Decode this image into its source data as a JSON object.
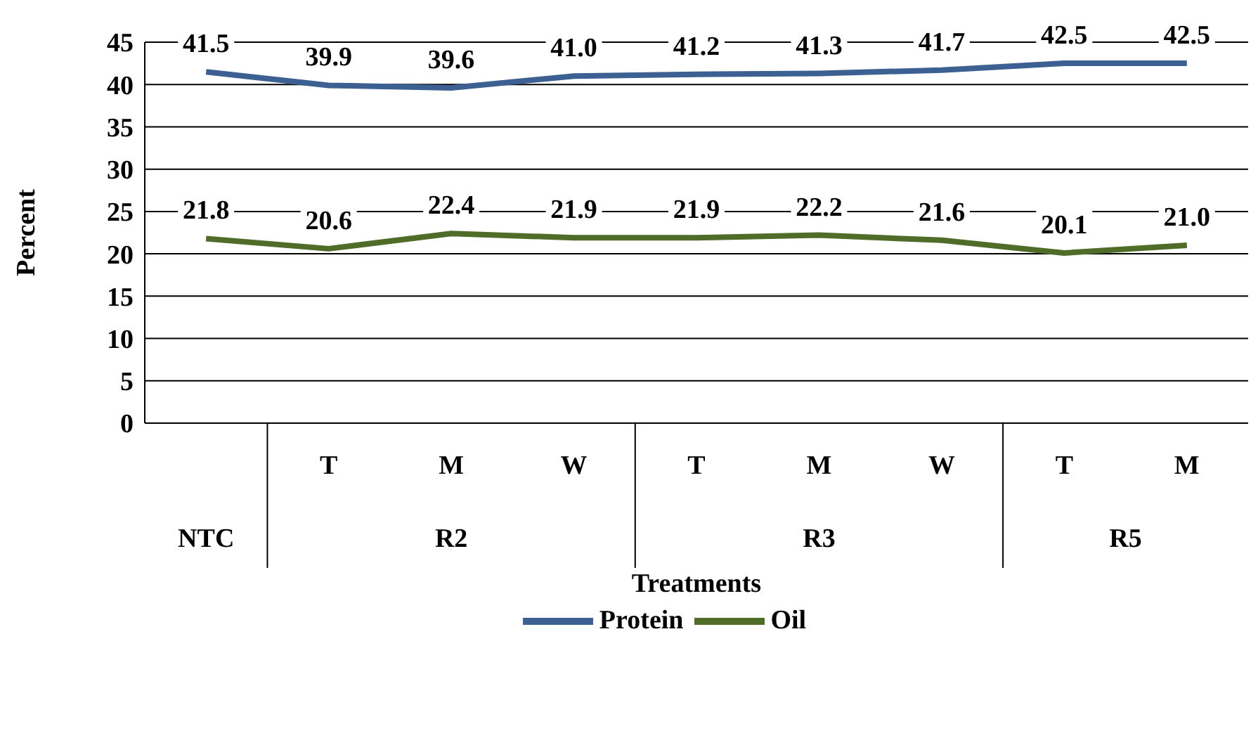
{
  "chart_data": {
    "type": "line",
    "xlabel": "Treatments",
    "ylabel": "Percent",
    "categories": [
      null,
      "T",
      "M",
      "W",
      "T",
      "M",
      "W",
      "T",
      "M"
    ],
    "annotations": [
      "NTC",
      "R2",
      "R3",
      "R5"
    ],
    "series": [
      {
        "name": "Protein",
        "color": "#3b6091",
        "values": [
          41.5,
          39.9,
          39.6,
          41.0,
          41.2,
          41.3,
          41.7,
          42.5,
          42.5
        ],
        "value_labels": [
          "41.5",
          "39.9",
          "39.6",
          "41.0",
          "41.2",
          "41.3",
          "41.7",
          "42.5",
          "42.5"
        ]
      },
      {
        "name": "Oil",
        "color": "#4f6c28",
        "values": [
          21.8,
          20.6,
          22.4,
          21.9,
          21.9,
          22.2,
          21.6,
          20.1,
          21.0
        ],
        "value_labels": [
          "21.8",
          "20.6",
          "22.4",
          "21.9",
          "21.9",
          "22.2",
          "21.6",
          "20.1",
          "21.0"
        ]
      }
    ],
    "ylim": [
      0,
      45
    ],
    "yticks": [
      0,
      5,
      10,
      15,
      20,
      25,
      30,
      35,
      40,
      45
    ],
    "grid": "y",
    "legend": "bottom",
    "marker": "none",
    "line_style": "solid"
  }
}
